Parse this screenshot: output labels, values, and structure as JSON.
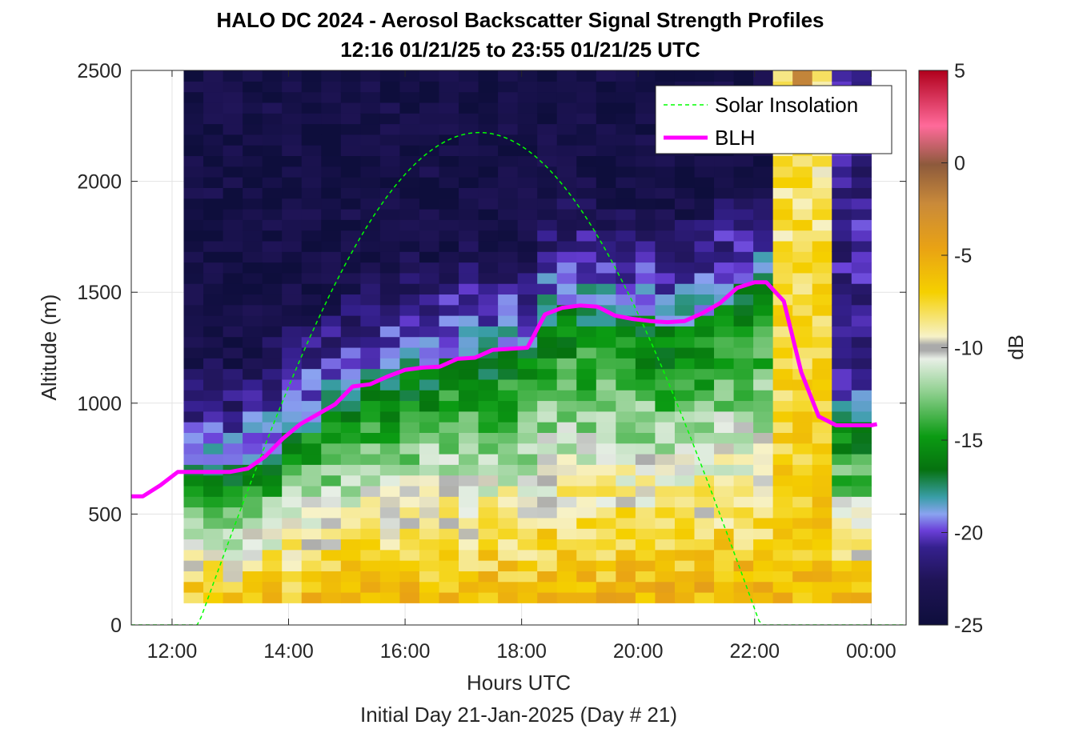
{
  "chart_data": {
    "type": "heatmap",
    "title": "HALO DC 2024 - Aerosol Backscatter Signal Strength Profiles",
    "subtitle": "12:16 01/21/25 to 23:55 01/21/25  UTC",
    "xlabel": "Hours UTC",
    "xlabel2": "Initial Day 21-Jan-2025 (Day # 21)",
    "ylabel": "Altitude (m)",
    "colorbar_label": "dB",
    "xlim_hours": [
      11.3,
      24.6
    ],
    "ylim": [
      0,
      2500
    ],
    "clim": [
      -25,
      5
    ],
    "x_tick_values": [
      12,
      14,
      16,
      18,
      20,
      22,
      24
    ],
    "x_tick_labels": [
      "12:00",
      "14:00",
      "16:00",
      "18:00",
      "20:00",
      "22:00",
      "00:00"
    ],
    "y_ticks": [
      0,
      500,
      1000,
      1500,
      2000,
      2500
    ],
    "colorbar_ticks": [
      -25,
      -20,
      -15,
      -10,
      -5,
      0,
      5
    ],
    "grid": true,
    "legend_position": "top-right",
    "legend": [
      {
        "label": "Solar Insolation",
        "style": "dashed",
        "color": "#00ff00"
      },
      {
        "label": "BLH",
        "style": "solid",
        "color": "#ff00ff"
      }
    ],
    "heatmap": {
      "time_start_hours": 12.2,
      "time_end_hours": 24.0,
      "n_time_bins": 35,
      "alt_start_m": 100,
      "alt_end_m": 2500,
      "n_alt_bins": 50,
      "description_source": "backscatter dB field (approximate)"
    },
    "series": [
      {
        "name": "BLH",
        "x_hours": [
          11.3,
          11.5,
          11.8,
          12.1,
          12.4,
          12.7,
          13.0,
          13.3,
          13.6,
          13.9,
          14.2,
          14.5,
          14.8,
          15.1,
          15.4,
          15.7,
          16.0,
          16.3,
          16.6,
          16.9,
          17.2,
          17.5,
          17.8,
          18.1,
          18.4,
          18.7,
          19.0,
          19.3,
          19.6,
          19.9,
          20.2,
          20.5,
          20.8,
          21.1,
          21.4,
          21.7,
          22.0,
          22.2,
          22.5,
          22.8,
          23.1,
          23.4,
          23.7,
          24.0,
          24.1
        ],
        "y_m": [
          580,
          580,
          630,
          690,
          690,
          690,
          690,
          705,
          760,
          840,
          905,
          950,
          995,
          1075,
          1085,
          1120,
          1150,
          1160,
          1165,
          1200,
          1205,
          1240,
          1245,
          1250,
          1400,
          1430,
          1440,
          1435,
          1395,
          1380,
          1370,
          1365,
          1370,
          1405,
          1450,
          1520,
          1545,
          1545,
          1460,
          1140,
          940,
          900,
          900,
          900,
          905
        ]
      },
      {
        "name": "Solar Insolation",
        "x_hours": [
          11.3,
          12.45,
          12.8,
          13.5,
          14.5,
          15.5,
          16.5,
          17.2,
          18.0,
          19.0,
          20.0,
          21.0,
          21.8,
          22.1,
          24.6
        ],
        "y_m": [
          0,
          0,
          530,
          1200,
          1720,
          2060,
          2200,
          2220,
          2120,
          1800,
          1340,
          800,
          290,
          0,
          0
        ]
      }
    ]
  }
}
